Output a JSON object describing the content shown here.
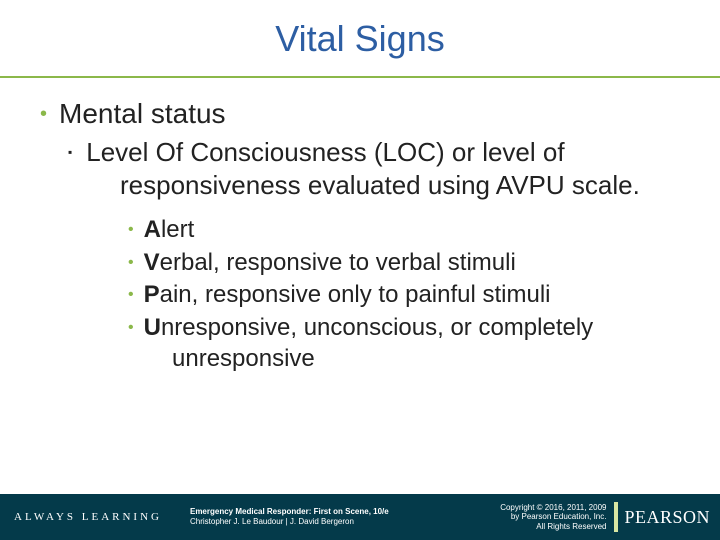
{
  "colors": {
    "title": "#2d5ea3",
    "rule": "#8bb84a",
    "bullet_green": "#8bb84a",
    "footer_bg": "#043a4a",
    "logo_bar": "#d8e6a3",
    "text": "#222222",
    "white": "#ffffff"
  },
  "title": "Vital Signs",
  "bullets": {
    "l1_0": "Mental status",
    "l2_0": "Level Of Consciousness (LOC) or level of responsiveness evaluated using AVPU scale.",
    "l3_0_b": "A",
    "l3_0_r": "lert",
    "l3_1_b": "V",
    "l3_1_r": "erbal, responsive to verbal stimuli",
    "l3_2_b": "P",
    "l3_2_r": "ain, responsive only to painful stimuli",
    "l3_3_b": "U",
    "l3_3_r": "nresponsive, unconscious, or completely unresponsive"
  },
  "footer": {
    "always": "ALWAYS LEARNING",
    "book_title": "Emergency Medical Responder: First on Scene, 10/e",
    "book_authors": "Christopher J. Le Baudour | J. David Bergeron",
    "copyright_l1": "Copyright © 2016, 2011, 2009",
    "copyright_l2": "by Pearson Education, Inc.",
    "copyright_l3": "All Rights Reserved",
    "logo": "PEARSON"
  }
}
